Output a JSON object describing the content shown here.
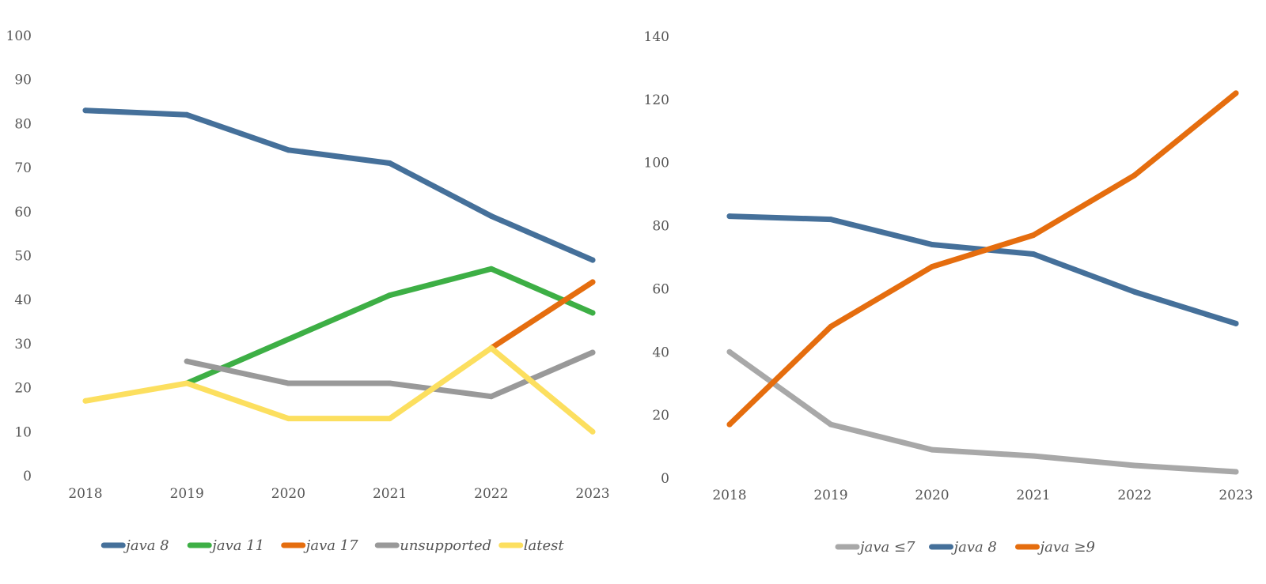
{
  "chart_data": [
    {
      "type": "line",
      "title": "",
      "xlabel": "",
      "ylabel": "",
      "x": [
        "2018",
        "2019",
        "2020",
        "2021",
        "2022",
        "2023"
      ],
      "ylim": [
        0,
        100
      ],
      "yticks": [
        "0",
        "10",
        "20",
        "30",
        "40",
        "50",
        "60",
        "70",
        "80",
        "90",
        "100"
      ],
      "grid": false,
      "legend": "bottom",
      "series": [
        {
          "name": "java 8",
          "color": "#45709a",
          "values": [
            83,
            82,
            74,
            71,
            59,
            49
          ]
        },
        {
          "name": "java 11",
          "color": "#3daf45",
          "values": [
            null,
            21,
            31,
            41,
            47,
            37
          ]
        },
        {
          "name": "java 17",
          "color": "#e56d0e",
          "values": [
            null,
            null,
            null,
            null,
            29,
            44
          ]
        },
        {
          "name": "unsupported",
          "color": "#999999",
          "values": [
            null,
            26,
            21,
            21,
            18,
            28
          ]
        },
        {
          "name": "latest",
          "color": "#fcdf5f",
          "values": [
            17,
            21,
            13,
            13,
            29,
            10
          ]
        }
      ]
    },
    {
      "type": "line",
      "title": "",
      "xlabel": "",
      "ylabel": "",
      "x": [
        "2018",
        "2019",
        "2020",
        "2021",
        "2022",
        "2023"
      ],
      "ylim": [
        0,
        140
      ],
      "yticks": [
        "0",
        "20",
        "40",
        "60",
        "80",
        "100",
        "120",
        "140"
      ],
      "grid": false,
      "legend": "bottom",
      "series": [
        {
          "name": "java ≤7",
          "color": "#a8a8a8",
          "values": [
            40,
            17,
            9,
            7,
            4,
            2
          ]
        },
        {
          "name": "java 8",
          "color": "#45709a",
          "values": [
            83,
            82,
            74,
            71,
            59,
            49
          ]
        },
        {
          "name": "java ≥9",
          "color": "#e56d0e",
          "values": [
            17,
            48,
            67,
            77,
            96,
            122
          ]
        }
      ]
    }
  ]
}
